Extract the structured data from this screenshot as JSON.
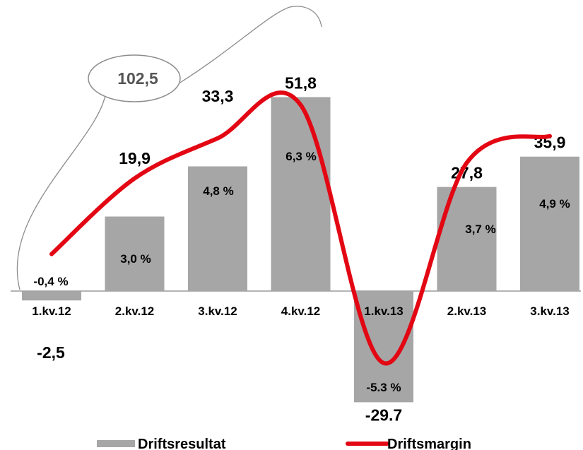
{
  "chart_data": {
    "type": "bar",
    "categories": [
      "1.kv.12",
      "2.kv.12",
      "3.kv.12",
      "4.kv.12",
      "1.kv.13",
      "2.kv.13",
      "3.kv.13"
    ],
    "series": [
      {
        "name": "Driftsresultat",
        "type": "bar",
        "values": [
          -2.5,
          19.9,
          33.3,
          51.8,
          -29.7,
          27.8,
          35.9
        ],
        "labels": [
          "-2,5",
          "19,9",
          "33,3",
          "51,8",
          "-29.7",
          "27,8",
          "35,9"
        ],
        "color": "#a6a6a6"
      },
      {
        "name": "Driftsmargin",
        "type": "line",
        "values": [
          -0.4,
          3.0,
          4.8,
          6.3,
          -5.3,
          3.7,
          4.9
        ],
        "labels": [
          "-0,4 %",
          "3,0 %",
          "4,8 %",
          "6,3 %",
          "-5.3 %",
          "3,7 %",
          "4,9 %"
        ],
        "color": "#e30613"
      }
    ],
    "annotation": {
      "text": "102,5",
      "covers": [
        "1.kv.12",
        "2.kv.12",
        "3.kv.12",
        "4.kv.12"
      ]
    },
    "legend": {
      "position": "bottom",
      "entries": [
        "Driftsresultat",
        "Driftsmargin"
      ]
    },
    "grid": false
  }
}
